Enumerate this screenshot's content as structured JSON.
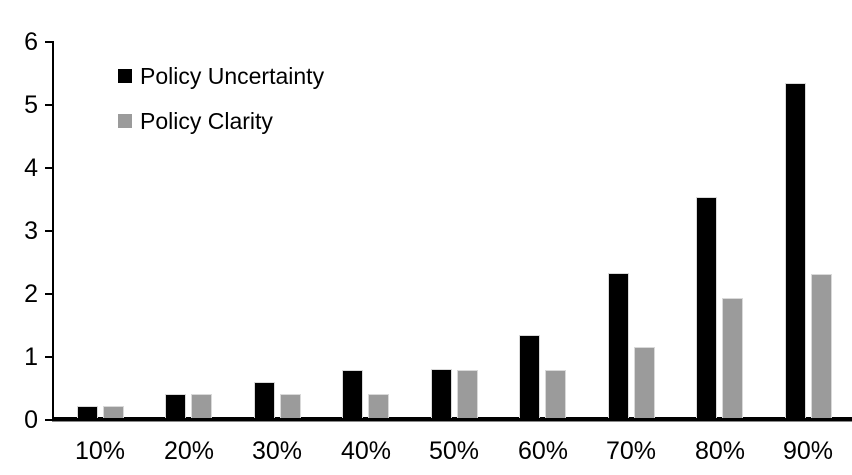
{
  "chart_data": {
    "type": "bar",
    "title": "",
    "xlabel": "",
    "ylabel": "",
    "categories": [
      "10%",
      "20%",
      "30%",
      "40%",
      "50%",
      "60%",
      "70%",
      "80%",
      "90%"
    ],
    "series": [
      {
        "name": "Policy Uncertainty",
        "color": "#000000",
        "values": [
          0.19,
          0.38,
          0.57,
          0.76,
          0.77,
          1.32,
          2.3,
          3.5,
          5.32
        ]
      },
      {
        "name": "Policy Clarity",
        "color": "#9B9B9B",
        "values": [
          0.19,
          0.38,
          0.38,
          0.38,
          0.76,
          0.76,
          1.13,
          1.9,
          2.28
        ]
      }
    ],
    "ylim": [
      0,
      6
    ],
    "yticks": [
      0,
      1,
      2,
      3,
      4,
      5,
      6
    ],
    "grid": false,
    "legend_position": "top-left-inside",
    "axis_color": "#000000",
    "bar_border_color": "#D9D9D9",
    "background_color": "#FFFFFF"
  }
}
